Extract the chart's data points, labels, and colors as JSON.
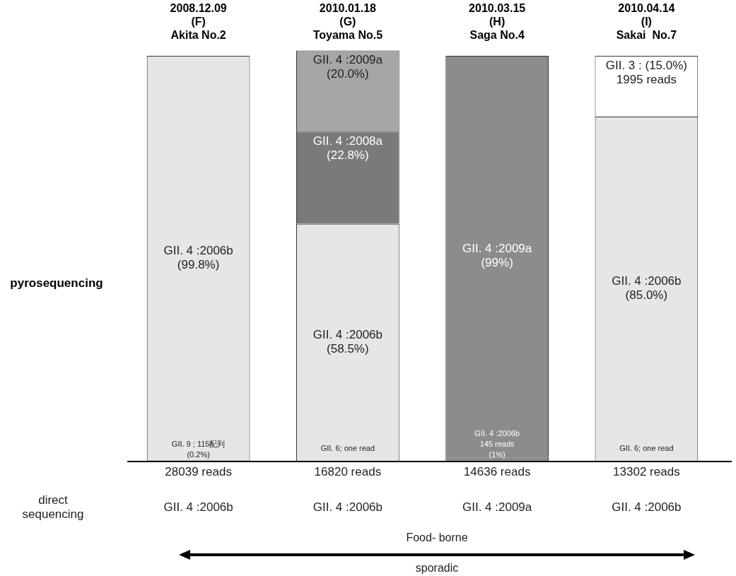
{
  "chart_data": {
    "type": "bar",
    "stacked": true,
    "ylabel": "pyrosequencing",
    "categories": [
      "2008.12.09\n(F)\nAkita No.2",
      "2010.01.18\n(G)\nToyama No.5",
      "2010.03.15\n(H)\nSaga No.4",
      "2010.04.14\n(I)\nSakai  No.7"
    ],
    "ylim": [
      0,
      101.3
    ],
    "series": [
      {
        "colors": [
          "#e6e6e6",
          "#e6e6e6",
          "#8c8c8c",
          "#e6e6e6"
        ],
        "values": [
          0.2,
          null,
          1,
          null
        ],
        "value_labels": [
          "GII. 9 ; 115配列\n(0.2%)",
          null,
          "GII. 4 :2006b\n145 reads\n(1%)",
          null
        ]
      },
      {
        "colors": [
          "#e6e6e6",
          "#e6e6e6",
          "#8c8c8c",
          "#e6e6e6"
        ],
        "values": [
          99.8,
          58.5,
          99,
          85
        ],
        "value_labels": [
          "GII. 4 :2006b\n(99.8%)",
          "GII. 4 :2006b\n(58.5%)",
          "GII. 4 :2009a\n(99%)",
          "GII. 4 :2006b\n(85.0%)"
        ]
      },
      {
        "colors": [
          "#e6e6e6",
          "#7a7a7a",
          "#8c8c8c",
          "#ffffff"
        ],
        "values": [
          null,
          22.8,
          null,
          15
        ],
        "value_labels": [
          null,
          "GII. 4 :2008a\n(22.8%)",
          null,
          "GII. 3 : (15.0%)\n1995 reads"
        ]
      },
      {
        "colors": [
          "#e6e6e6",
          "#a6a6a6",
          "#8c8c8c",
          "#e6e6e6"
        ],
        "values": [
          null,
          20.0,
          null,
          null
        ],
        "value_labels": [
          null,
          "GII. 4 :2009a\n(20.0%)",
          null,
          null
        ]
      }
    ],
    "annotations": [
      "28039 reads",
      "16820 reads",
      "14636 reads",
      "13302 reads",
      "GII. 4 :2006b",
      "GII. 4 :2006b",
      "GII. 4 :2009a",
      "GII. 4 :2006b",
      "GII. 6; one read",
      "GII. 6; one read",
      "direct sequencing",
      "Food- borne",
      "sporadic"
    ]
  }
}
